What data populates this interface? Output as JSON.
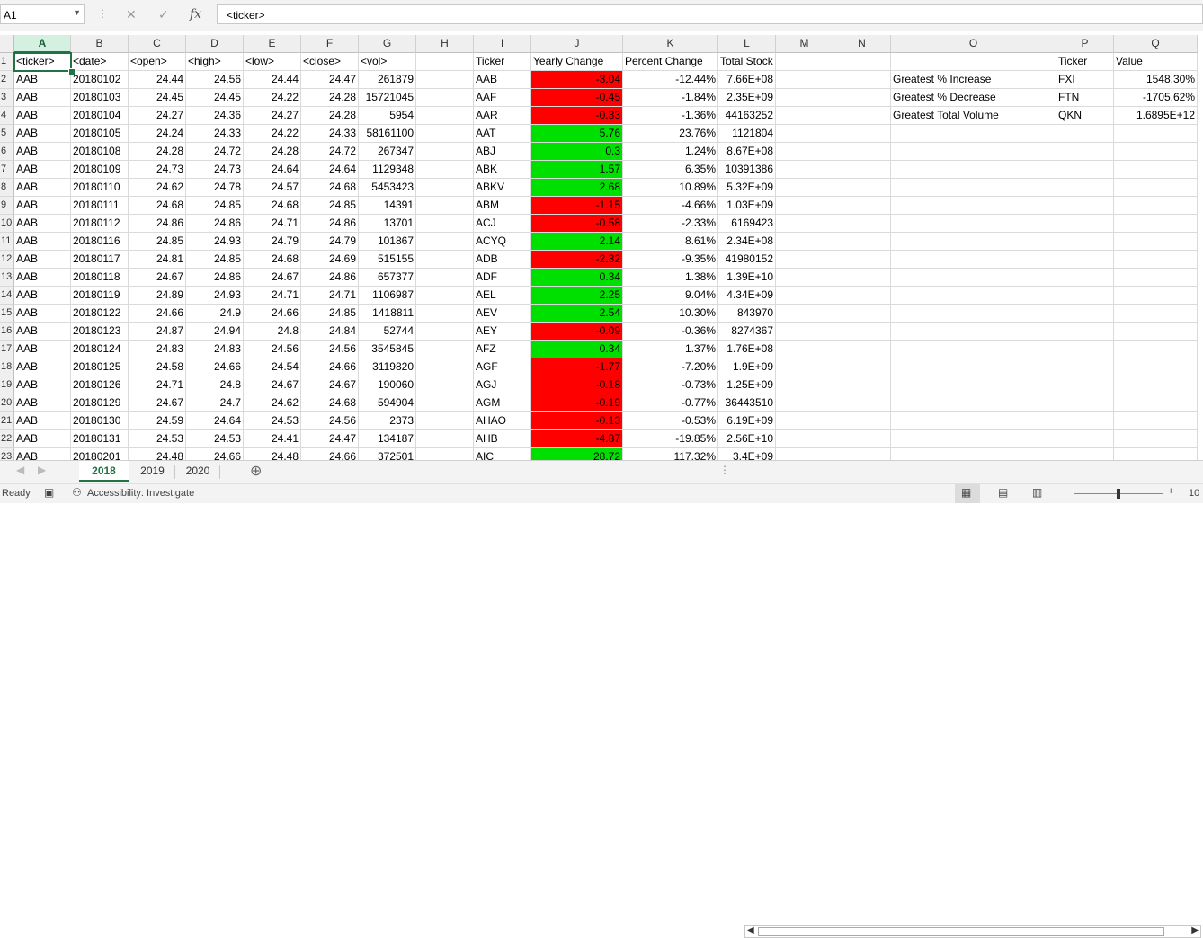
{
  "formula_bar": {
    "name_box": "A1",
    "formula": "<ticker>",
    "cancel_icon": "✕",
    "enter_icon": "✓",
    "function_icon": "fx"
  },
  "columns": [
    "A",
    "B",
    "C",
    "D",
    "E",
    "F",
    "G",
    "H",
    "I",
    "J",
    "K",
    "L",
    "M",
    "N",
    "O",
    "P",
    "Q"
  ],
  "row_numbers": [
    "1",
    "2",
    "3",
    "4",
    "5",
    "6",
    "7",
    "8",
    "9",
    "10",
    "11",
    "12",
    "13",
    "14",
    "15",
    "16",
    "17",
    "18",
    "19",
    "20",
    "21",
    "22",
    "23"
  ],
  "raw_headers": [
    "<ticker>",
    "<date>",
    "<open>",
    "<high>",
    "<low>",
    "<close>",
    "<vol>"
  ],
  "raw_rows": [
    [
      "AAB",
      "20180102",
      "24.44",
      "24.56",
      "24.44",
      "24.47",
      "261879"
    ],
    [
      "AAB",
      "20180103",
      "24.45",
      "24.45",
      "24.22",
      "24.28",
      "15721045"
    ],
    [
      "AAB",
      "20180104",
      "24.27",
      "24.36",
      "24.27",
      "24.28",
      "5954"
    ],
    [
      "AAB",
      "20180105",
      "24.24",
      "24.33",
      "24.22",
      "24.33",
      "58161100"
    ],
    [
      "AAB",
      "20180108",
      "24.28",
      "24.72",
      "24.28",
      "24.72",
      "267347"
    ],
    [
      "AAB",
      "20180109",
      "24.73",
      "24.73",
      "24.64",
      "24.64",
      "1129348"
    ],
    [
      "AAB",
      "20180110",
      "24.62",
      "24.78",
      "24.57",
      "24.68",
      "5453423"
    ],
    [
      "AAB",
      "20180111",
      "24.68",
      "24.85",
      "24.68",
      "24.85",
      "14391"
    ],
    [
      "AAB",
      "20180112",
      "24.86",
      "24.86",
      "24.71",
      "24.86",
      "13701"
    ],
    [
      "AAB",
      "20180116",
      "24.85",
      "24.93",
      "24.79",
      "24.79",
      "101867"
    ],
    [
      "AAB",
      "20180117",
      "24.81",
      "24.85",
      "24.68",
      "24.69",
      "515155"
    ],
    [
      "AAB",
      "20180118",
      "24.67",
      "24.86",
      "24.67",
      "24.86",
      "657377"
    ],
    [
      "AAB",
      "20180119",
      "24.89",
      "24.93",
      "24.71",
      "24.71",
      "1106987"
    ],
    [
      "AAB",
      "20180122",
      "24.66",
      "24.9",
      "24.66",
      "24.85",
      "1418811"
    ],
    [
      "AAB",
      "20180123",
      "24.87",
      "24.94",
      "24.8",
      "24.84",
      "52744"
    ],
    [
      "AAB",
      "20180124",
      "24.83",
      "24.83",
      "24.56",
      "24.56",
      "3545845"
    ],
    [
      "AAB",
      "20180125",
      "24.58",
      "24.66",
      "24.54",
      "24.66",
      "3119820"
    ],
    [
      "AAB",
      "20180126",
      "24.71",
      "24.8",
      "24.67",
      "24.67",
      "190060"
    ],
    [
      "AAB",
      "20180129",
      "24.67",
      "24.7",
      "24.62",
      "24.68",
      "594904"
    ],
    [
      "AAB",
      "20180130",
      "24.59",
      "24.64",
      "24.53",
      "24.56",
      "2373"
    ],
    [
      "AAB",
      "20180131",
      "24.53",
      "24.53",
      "24.41",
      "24.47",
      "134187"
    ],
    [
      "AAB",
      "20180201",
      "24.48",
      "24.66",
      "24.48",
      "24.66",
      "372501"
    ]
  ],
  "summary_headers": [
    "Ticker",
    "Yearly Change",
    "Percent Change",
    "Total Stock Volume"
  ],
  "summary_rows": [
    {
      "ticker": "AAB",
      "change": "-3.04",
      "pct": "-12.44%",
      "vol": "7.66E+08",
      "pos": false
    },
    {
      "ticker": "AAF",
      "change": "-0.45",
      "pct": "-1.84%",
      "vol": "2.35E+09",
      "pos": false
    },
    {
      "ticker": "AAR",
      "change": "-0.33",
      "pct": "-1.36%",
      "vol": "44163252",
      "pos": false
    },
    {
      "ticker": "AAT",
      "change": "5.76",
      "pct": "23.76%",
      "vol": "1121804",
      "pos": true
    },
    {
      "ticker": "ABJ",
      "change": "0.3",
      "pct": "1.24%",
      "vol": "8.67E+08",
      "pos": true
    },
    {
      "ticker": "ABK",
      "change": "1.57",
      "pct": "6.35%",
      "vol": "10391386",
      "pos": true
    },
    {
      "ticker": "ABKV",
      "change": "2.68",
      "pct": "10.89%",
      "vol": "5.32E+09",
      "pos": true
    },
    {
      "ticker": "ABM",
      "change": "-1.15",
      "pct": "-4.66%",
      "vol": "1.03E+09",
      "pos": false
    },
    {
      "ticker": "ACJ",
      "change": "-0.58",
      "pct": "-2.33%",
      "vol": "6169423",
      "pos": false
    },
    {
      "ticker": "ACYQ",
      "change": "2.14",
      "pct": "8.61%",
      "vol": "2.34E+08",
      "pos": true
    },
    {
      "ticker": "ADB",
      "change": "-2.32",
      "pct": "-9.35%",
      "vol": "41980152",
      "pos": false
    },
    {
      "ticker": "ADF",
      "change": "0.34",
      "pct": "1.38%",
      "vol": "1.39E+10",
      "pos": true
    },
    {
      "ticker": "AEL",
      "change": "2.25",
      "pct": "9.04%",
      "vol": "4.34E+09",
      "pos": true
    },
    {
      "ticker": "AEV",
      "change": "2.54",
      "pct": "10.30%",
      "vol": "843970",
      "pos": true
    },
    {
      "ticker": "AEY",
      "change": "-0.09",
      "pct": "-0.36%",
      "vol": "8274367",
      "pos": false
    },
    {
      "ticker": "AFZ",
      "change": "0.34",
      "pct": "1.37%",
      "vol": "1.76E+08",
      "pos": true
    },
    {
      "ticker": "AGF",
      "change": "-1.77",
      "pct": "-7.20%",
      "vol": "1.9E+09",
      "pos": false
    },
    {
      "ticker": "AGJ",
      "change": "-0.18",
      "pct": "-0.73%",
      "vol": "1.25E+09",
      "pos": false
    },
    {
      "ticker": "AGM",
      "change": "-0.19",
      "pct": "-0.77%",
      "vol": "36443510",
      "pos": false
    },
    {
      "ticker": "AHAO",
      "change": "-0.13",
      "pct": "-0.53%",
      "vol": "6.19E+09",
      "pos": false
    },
    {
      "ticker": "AHB",
      "change": "-4.87",
      "pct": "-19.85%",
      "vol": "2.56E+10",
      "pos": false
    },
    {
      "ticker": "AIC",
      "change": "28.72",
      "pct": "117.32%",
      "vol": "3.4E+09",
      "pos": true
    }
  ],
  "greatest": {
    "headers": [
      "Ticker",
      "Value"
    ],
    "rows": [
      {
        "label": "Greatest % Increase",
        "ticker": "FXI",
        "value": "1548.30%"
      },
      {
        "label": "Greatest % Decrease",
        "ticker": "FTN",
        "value": "-1705.62%"
      },
      {
        "label": "Greatest Total Volume",
        "ticker": "QKN",
        "value": "1.6895E+12"
      }
    ]
  },
  "sheet_tabs": [
    "2018",
    "2019",
    "2020"
  ],
  "active_tab": "2018",
  "status": {
    "ready": "Ready",
    "accessibility": "Accessibility: Investigate",
    "zoom": "10"
  },
  "colors": {
    "accent": "#217346",
    "negative": "#ff0000",
    "positive": "#00e000"
  }
}
